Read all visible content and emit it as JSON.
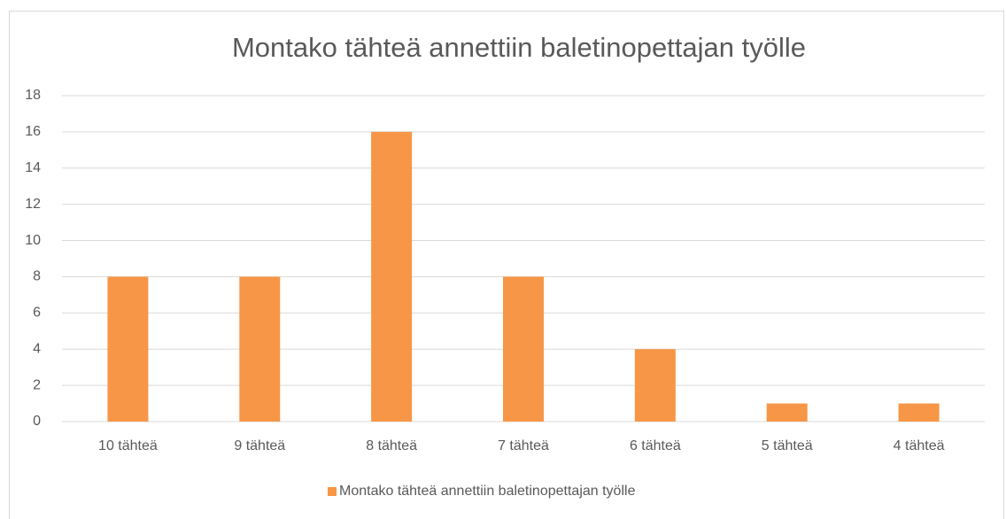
{
  "chart_data": {
    "type": "bar",
    "title": "Montako tähteä annettiin baletinopettajan työlle",
    "categories": [
      "10 tähteä",
      "9 tähteä",
      "8 tähteä",
      "7 tähteä",
      "6 tähteä",
      "5 tähteä",
      "4 tähteä"
    ],
    "series": [
      {
        "name": "Montako tähteä annettiin baletinopettajan työlle",
        "color": "#f79646",
        "values": [
          8,
          8,
          16,
          8,
          4,
          1,
          1
        ]
      }
    ],
    "ylim": [
      0,
      18
    ],
    "yticks": [
      0,
      2,
      4,
      6,
      8,
      10,
      12,
      14,
      16,
      18
    ],
    "grid": true,
    "legend": "bottom"
  }
}
